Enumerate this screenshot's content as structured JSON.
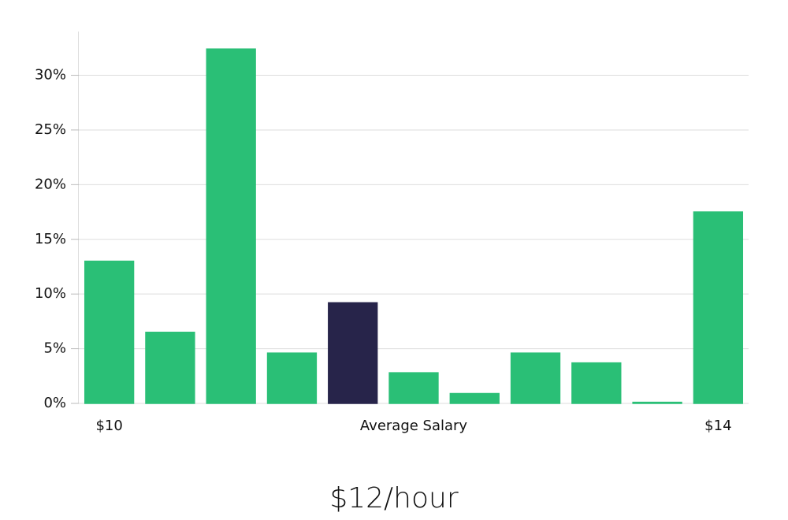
{
  "chart_data": {
    "type": "bar",
    "categories": [
      "$10",
      null,
      null,
      null,
      null,
      "Average Salary",
      null,
      null,
      null,
      null,
      "$14"
    ],
    "values": [
      13.0,
      6.5,
      32.4,
      4.6,
      9.2,
      2.8,
      0.9,
      4.6,
      3.7,
      0.1,
      17.5
    ],
    "colors": [
      "#2abf76",
      "#2abf76",
      "#2abf76",
      "#2abf76",
      "#27244a",
      "#2abf76",
      "#2abf76",
      "#2abf76",
      "#2abf76",
      "#2abf76",
      "#2abf76"
    ],
    "ylim": [
      0,
      34
    ],
    "yticks": [
      {
        "value": 0,
        "label": "0%"
      },
      {
        "value": 5,
        "label": "5%"
      },
      {
        "value": 10,
        "label": "10%"
      },
      {
        "value": 15,
        "label": "15%"
      },
      {
        "value": 20,
        "label": "20%"
      },
      {
        "value": 25,
        "label": "25%"
      },
      {
        "value": 30,
        "label": "30%"
      }
    ],
    "grid": true,
    "annotation": "$12/hour"
  }
}
